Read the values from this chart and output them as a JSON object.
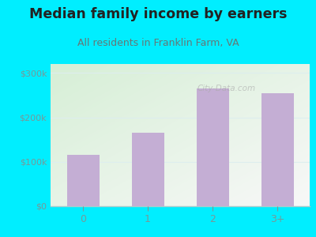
{
  "title": "Median family income by earners",
  "subtitle": "All residents in Franklin Farm, VA",
  "categories": [
    "0",
    "1",
    "2",
    "3+"
  ],
  "values": [
    115000,
    165000,
    265000,
    255000
  ],
  "bar_color": "#c4aed4",
  "background_color": "#00eeff",
  "plot_bg_topleft": "#d6efd6",
  "plot_bg_bottomright": "#f8f8f8",
  "title_color": "#222222",
  "subtitle_color": "#667777",
  "axis_label_color": "#779999",
  "ytick_labels": [
    "$0",
    "$100k",
    "$200k",
    "$300k"
  ],
  "ytick_values": [
    0,
    100000,
    200000,
    300000
  ],
  "ylim": [
    0,
    320000
  ],
  "watermark": "City-Data.com",
  "title_fontsize": 12.5,
  "subtitle_fontsize": 9
}
